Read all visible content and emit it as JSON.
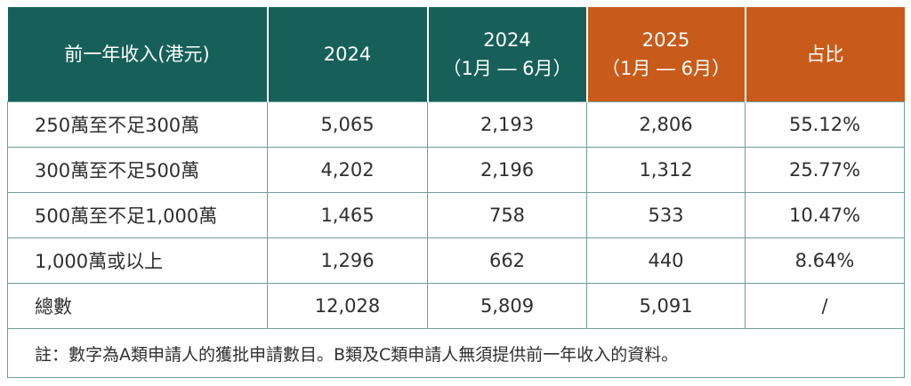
{
  "headers": [
    {
      "line1": "前一年收入(港元)",
      "line2": ""
    },
    {
      "line1": "2024",
      "line2": ""
    },
    {
      "line1": "2024",
      "line2": "（1月 ― 6月）"
    },
    {
      "line1": "2025",
      "line2": "（1月 ― 6月）"
    },
    {
      "line1": "占比",
      "line2": ""
    }
  ],
  "header_colors": {
    "teal": "#17605a",
    "orange": "#c95b1a"
  },
  "rows": [
    [
      "250萬至不足300萬",
      "5,065",
      "2,193",
      "2,806",
      "55.12%"
    ],
    [
      "300萬至不足500萬",
      "4,202",
      "2,196",
      "1,312",
      "25.77%"
    ],
    [
      "500萬至不足1,000萬",
      "1,465",
      "758",
      "533",
      "10.47%"
    ],
    [
      "1,000萬或以上",
      "1,296",
      "662",
      "440",
      "8.64%"
    ],
    [
      "總數",
      "12,028",
      "5,809",
      "5,091",
      "/"
    ]
  ],
  "note": "註：數字為A類申請人的獲批申請數目。B類及C類申請人無須提供前一年收入的資料。"
}
